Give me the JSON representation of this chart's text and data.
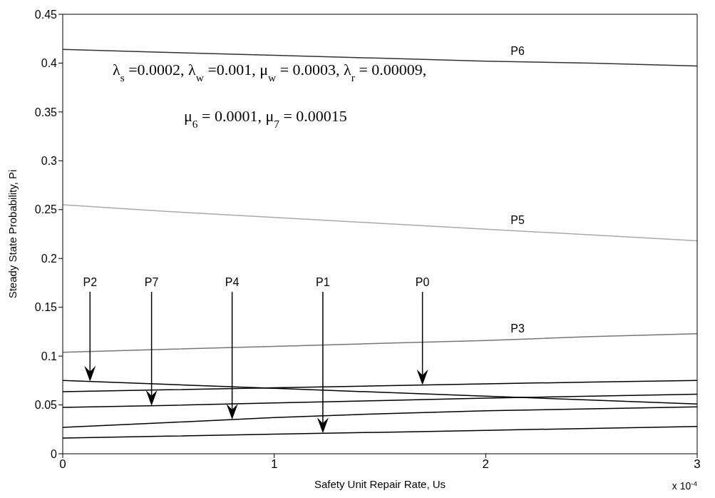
{
  "chart_data": {
    "type": "line",
    "xlabel": "Safety Unit Repair Rate, Us",
    "ylabel": "Steady State Probability, Pi",
    "x": [
      0,
      0.5,
      1,
      1.5,
      2,
      2.5,
      3
    ],
    "series": [
      {
        "name": "P6",
        "color": "#333333",
        "values": [
          0.414,
          0.411,
          0.408,
          0.405,
          0.402,
          0.4,
          0.397
        ]
      },
      {
        "name": "P5",
        "color": "#aaaaaa",
        "values": [
          0.255,
          0.248,
          0.242,
          0.236,
          0.23,
          0.224,
          0.218
        ]
      },
      {
        "name": "P3",
        "color": "#777777",
        "values": [
          0.104,
          0.107,
          0.11,
          0.113,
          0.116,
          0.12,
          0.123
        ]
      },
      {
        "name": "P0",
        "color": "#000000",
        "values": [
          0.0636,
          0.0655,
          0.0675,
          0.0695,
          0.0715,
          0.0735,
          0.075
        ]
      },
      {
        "name": "P2",
        "color": "#000000",
        "values": [
          0.075,
          0.071,
          0.067,
          0.063,
          0.059,
          0.055,
          0.051
        ]
      },
      {
        "name": "P7",
        "color": "#000000",
        "values": [
          0.0474,
          0.0495,
          0.052,
          0.0545,
          0.057,
          0.059,
          0.061
        ]
      },
      {
        "name": "P4",
        "color": "#000000",
        "values": [
          0.027,
          0.032,
          0.037,
          0.041,
          0.044,
          0.046,
          0.048
        ]
      },
      {
        "name": "P1",
        "color": "#000000",
        "values": [
          0.016,
          0.018,
          0.02,
          0.022,
          0.024,
          0.026,
          0.028
        ]
      }
    ],
    "annotations": [
      "λ$_{s}$ =0.0002,  λ$_{w}$ =0.001,  μ$_{w}$ = 0.0003,  λ$_{r}$ = 0.00009,",
      "μ$_{6}$ = 0.0001,  μ$_{7}$ = 0.00015",
      "x 10$^{-4}$"
    ],
    "xlim": [
      0,
      3
    ],
    "xticks": [
      0,
      1,
      2,
      3
    ],
    "ylim": [
      0,
      0.45
    ],
    "yticks": [
      0,
      0.05,
      0.1,
      0.15,
      0.2,
      0.25,
      0.3,
      0.35,
      0.4,
      0.45
    ],
    "grid": false,
    "legend": false,
    "marker": "none",
    "line_style": "solid"
  }
}
